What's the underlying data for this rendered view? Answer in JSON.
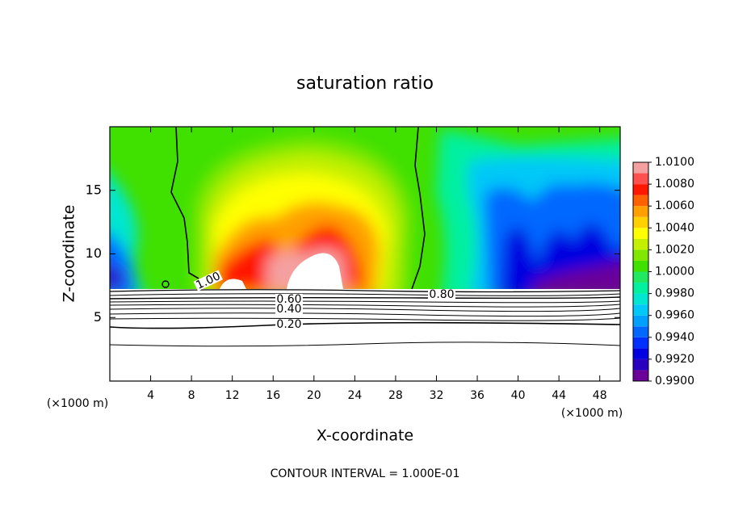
{
  "chart_data": {
    "type": "contour",
    "title": "saturation ratio",
    "x_label": "X-coordinate",
    "y_label": "Z-coordinate",
    "x_unit_left": "(×1000 m)",
    "x_unit_right": "(×1000 m)",
    "footer": "CONTOUR INTERVAL = 1.000E-01",
    "xlim": [
      0,
      50
    ],
    "xticks": [
      4,
      8,
      12,
      16,
      20,
      24,
      28,
      32,
      36,
      40,
      44,
      48
    ],
    "ylim": [
      0,
      20
    ],
    "yticks": [
      5,
      10,
      15
    ],
    "levels": [
      0.99,
      0.991,
      0.992,
      0.993,
      0.994,
      0.995,
      0.996,
      0.997,
      0.998,
      0.999,
      1.0,
      1.001,
      1.002,
      1.003,
      1.004,
      1.005,
      1.006,
      1.007,
      1.008,
      1.009,
      1.01
    ],
    "colors": [
      "#6a0098",
      "#2a00c0",
      "#0000e0",
      "#0030ff",
      "#0068ff",
      "#00a0ff",
      "#00c8f8",
      "#00e6d0",
      "#00f0a0",
      "#20e860",
      "#40e000",
      "#80e800",
      "#c4f000",
      "#ffff00",
      "#ffd000",
      "#ffa000",
      "#ff6000",
      "#ff1800",
      "#ff5050",
      "#f4a0a0"
    ],
    "colorbar_ticks": [
      {
        "value": 0.99,
        "label": "0.9900"
      },
      {
        "value": 0.992,
        "label": "0.9920"
      },
      {
        "value": 0.994,
        "label": "0.9940"
      },
      {
        "value": 0.996,
        "label": "0.9960"
      },
      {
        "value": 0.998,
        "label": "0.9980"
      },
      {
        "value": 1.0,
        "label": "1.0000"
      },
      {
        "value": 1.002,
        "label": "1.0020"
      },
      {
        "value": 1.004,
        "label": "1.0040"
      },
      {
        "value": 1.006,
        "label": "1.0060"
      },
      {
        "value": 1.008,
        "label": "1.0080"
      },
      {
        "value": 1.01,
        "label": "1.0100"
      }
    ],
    "contour_labels": [
      {
        "value": 1.0,
        "label": "1.00"
      },
      {
        "value": 0.8,
        "label": "0.80"
      },
      {
        "value": 0.6,
        "label": "0.60"
      },
      {
        "value": 0.4,
        "label": "0.40"
      },
      {
        "value": 0.2,
        "label": "0.20"
      }
    ]
  }
}
